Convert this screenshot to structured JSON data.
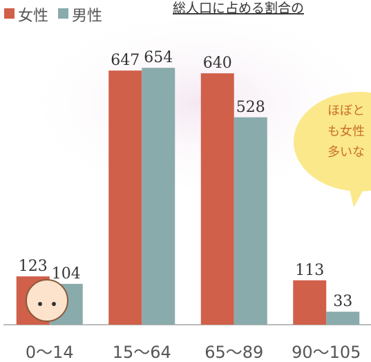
{
  "chart_data": {
    "type": "bar",
    "title": "総人口に占める割合の",
    "categories": [
      "0〜14",
      "15〜64",
      "65〜89",
      "90〜105"
    ],
    "series": [
      {
        "name": "女性",
        "color": "#d0604a",
        "values": [
          123,
          647,
          640,
          113
        ]
      },
      {
        "name": "男性",
        "color": "#8aabab",
        "values": [
          104,
          654,
          528,
          33
        ]
      }
    ],
    "ylim": [
      0,
      700
    ],
    "annotation": [
      "ほぼと",
      "も女性",
      "多いな"
    ]
  }
}
